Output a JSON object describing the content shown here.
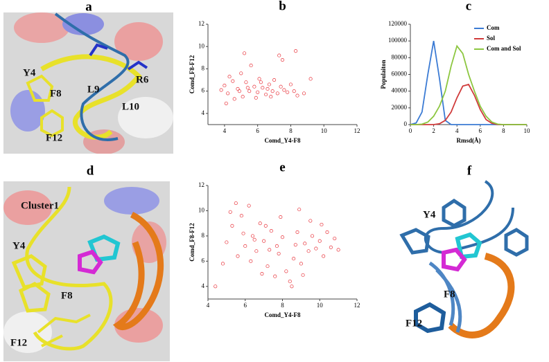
{
  "panels": {
    "a": "a",
    "d": "d",
    "f": "f"
  },
  "molecules": {
    "a": [
      "Y4",
      "R6",
      "F8",
      "L9",
      "L10",
      "F12"
    ],
    "d": [
      "Cluster1",
      "Y4",
      "F8",
      "F12"
    ],
    "f": [
      "Y4",
      "F8",
      "F12"
    ]
  },
  "chart_data": [
    {
      "type": "scatter",
      "title": "b",
      "x_label": "Comd_Y4-F8",
      "y_label": "Comd_F8-F12",
      "color": "#e8323a",
      "xlim": [
        3,
        12
      ],
      "ylim": [
        3,
        12
      ],
      "xticks": [
        4,
        6,
        8,
        10,
        12
      ],
      "yticks": [
        4,
        6,
        8,
        10,
        12
      ],
      "x": [
        4.0,
        4.2,
        4.5,
        4.8,
        5.0,
        5.1,
        5.3,
        5.5,
        5.6,
        5.8,
        6.0,
        6.1,
        6.3,
        6.5,
        6.7,
        6.9,
        7.0,
        7.2,
        7.4,
        7.6,
        7.8,
        8.0,
        8.2,
        8.4,
        3.8,
        4.3,
        4.6,
        5.2,
        5.4,
        5.9,
        6.2,
        6.6,
        7.3,
        7.5,
        8.3,
        9.2,
        8.8,
        4.1,
        4.9,
        6.8
      ],
      "values": [
        6.5,
        5.8,
        6.9,
        6.2,
        7.6,
        5.5,
        6.8,
        6.0,
        8.3,
        6.4,
        5.9,
        7.1,
        6.3,
        5.7,
        6.6,
        6.0,
        7.0,
        5.8,
        6.4,
        6.1,
        5.9,
        6.6,
        6.0,
        5.6,
        6.1,
        7.3,
        5.3,
        9.4,
        6.3,
        5.4,
        6.8,
        6.2,
        9.2,
        8.8,
        9.6,
        7.1,
        5.8,
        4.9,
        6.0,
        5.5
      ]
    },
    {
      "type": "line",
      "title": "c",
      "x_label": "Rmsd(Å)",
      "y_label": "Populaiton",
      "legend": "upper right",
      "xlim": [
        0,
        10
      ],
      "ylim": [
        0,
        120000
      ],
      "xticks": [
        0,
        2,
        4,
        6,
        8,
        10
      ],
      "yticks": [
        0,
        20000,
        40000,
        60000,
        80000,
        100000,
        120000
      ],
      "x": [
        0,
        0.5,
        1,
        1.5,
        2,
        2.5,
        3,
        3.5,
        4,
        4.5,
        5,
        5.5,
        6,
        6.5,
        7,
        7.5,
        8,
        8.5,
        9,
        9.5,
        10
      ],
      "series": [
        {
          "name": "Com",
          "color": "#3b7bd4",
          "values": [
            0,
            2000,
            15000,
            60000,
            100000,
            55000,
            5000,
            0,
            0,
            0,
            0,
            0,
            0,
            0,
            0,
            0,
            0,
            0,
            0,
            0,
            0
          ]
        },
        {
          "name": "Sol",
          "color": "#d03a3a",
          "values": [
            0,
            0,
            0,
            0,
            0,
            1000,
            5000,
            15000,
            32000,
            46000,
            48000,
            35000,
            18000,
            6000,
            1500,
            0,
            0,
            0,
            0,
            0,
            0
          ]
        },
        {
          "name": "Com and Sol",
          "color": "#8cc63f",
          "values": [
            0,
            0,
            500,
            3000,
            10000,
            22000,
            40000,
            70000,
            94000,
            85000,
            60000,
            40000,
            22000,
            10000,
            3000,
            500,
            0,
            0,
            0,
            0,
            0
          ]
        }
      ]
    },
    {
      "type": "scatter",
      "title": "e",
      "x_label": "Comd_Y4-F8",
      "y_label": "Comd_F8-F12",
      "color": "#e8323a",
      "xlim": [
        4,
        12
      ],
      "ylim": [
        3,
        12
      ],
      "xticks": [
        4,
        6,
        8,
        10,
        12
      ],
      "yticks": [
        4,
        6,
        8,
        10,
        12
      ],
      "x": [
        5.0,
        5.3,
        5.6,
        5.8,
        6.0,
        6.2,
        6.4,
        6.6,
        6.8,
        7.0,
        7.2,
        7.4,
        7.6,
        7.8,
        8.0,
        8.2,
        8.4,
        8.6,
        8.8,
        9.0,
        9.2,
        9.4,
        9.6,
        9.8,
        10.0,
        10.2,
        10.4,
        10.6,
        10.8,
        11.0,
        4.4,
        4.8,
        5.2,
        5.5,
        6.3,
        7.1,
        7.9,
        8.5,
        8.9,
        9.1,
        9.5,
        6.9,
        5.9,
        7.7,
        8.7,
        10.1,
        6.5,
        7.3
      ],
      "values": [
        7.5,
        8.8,
        6.4,
        9.6,
        7.2,
        10.4,
        8.0,
        6.8,
        9.0,
        7.6,
        5.6,
        8.4,
        4.8,
        6.6,
        7.9,
        5.2,
        4.4,
        6.2,
        8.3,
        5.8,
        7.4,
        6.8,
        8.0,
        7.0,
        7.6,
        6.4,
        8.3,
        7.1,
        7.8,
        6.9,
        4.0,
        5.8,
        9.9,
        10.6,
        6.0,
        8.8,
        9.5,
        4.0,
        10.1,
        4.9,
        9.2,
        5.0,
        8.2,
        7.2,
        7.3,
        8.9,
        7.7,
        6.9
      ]
    }
  ]
}
